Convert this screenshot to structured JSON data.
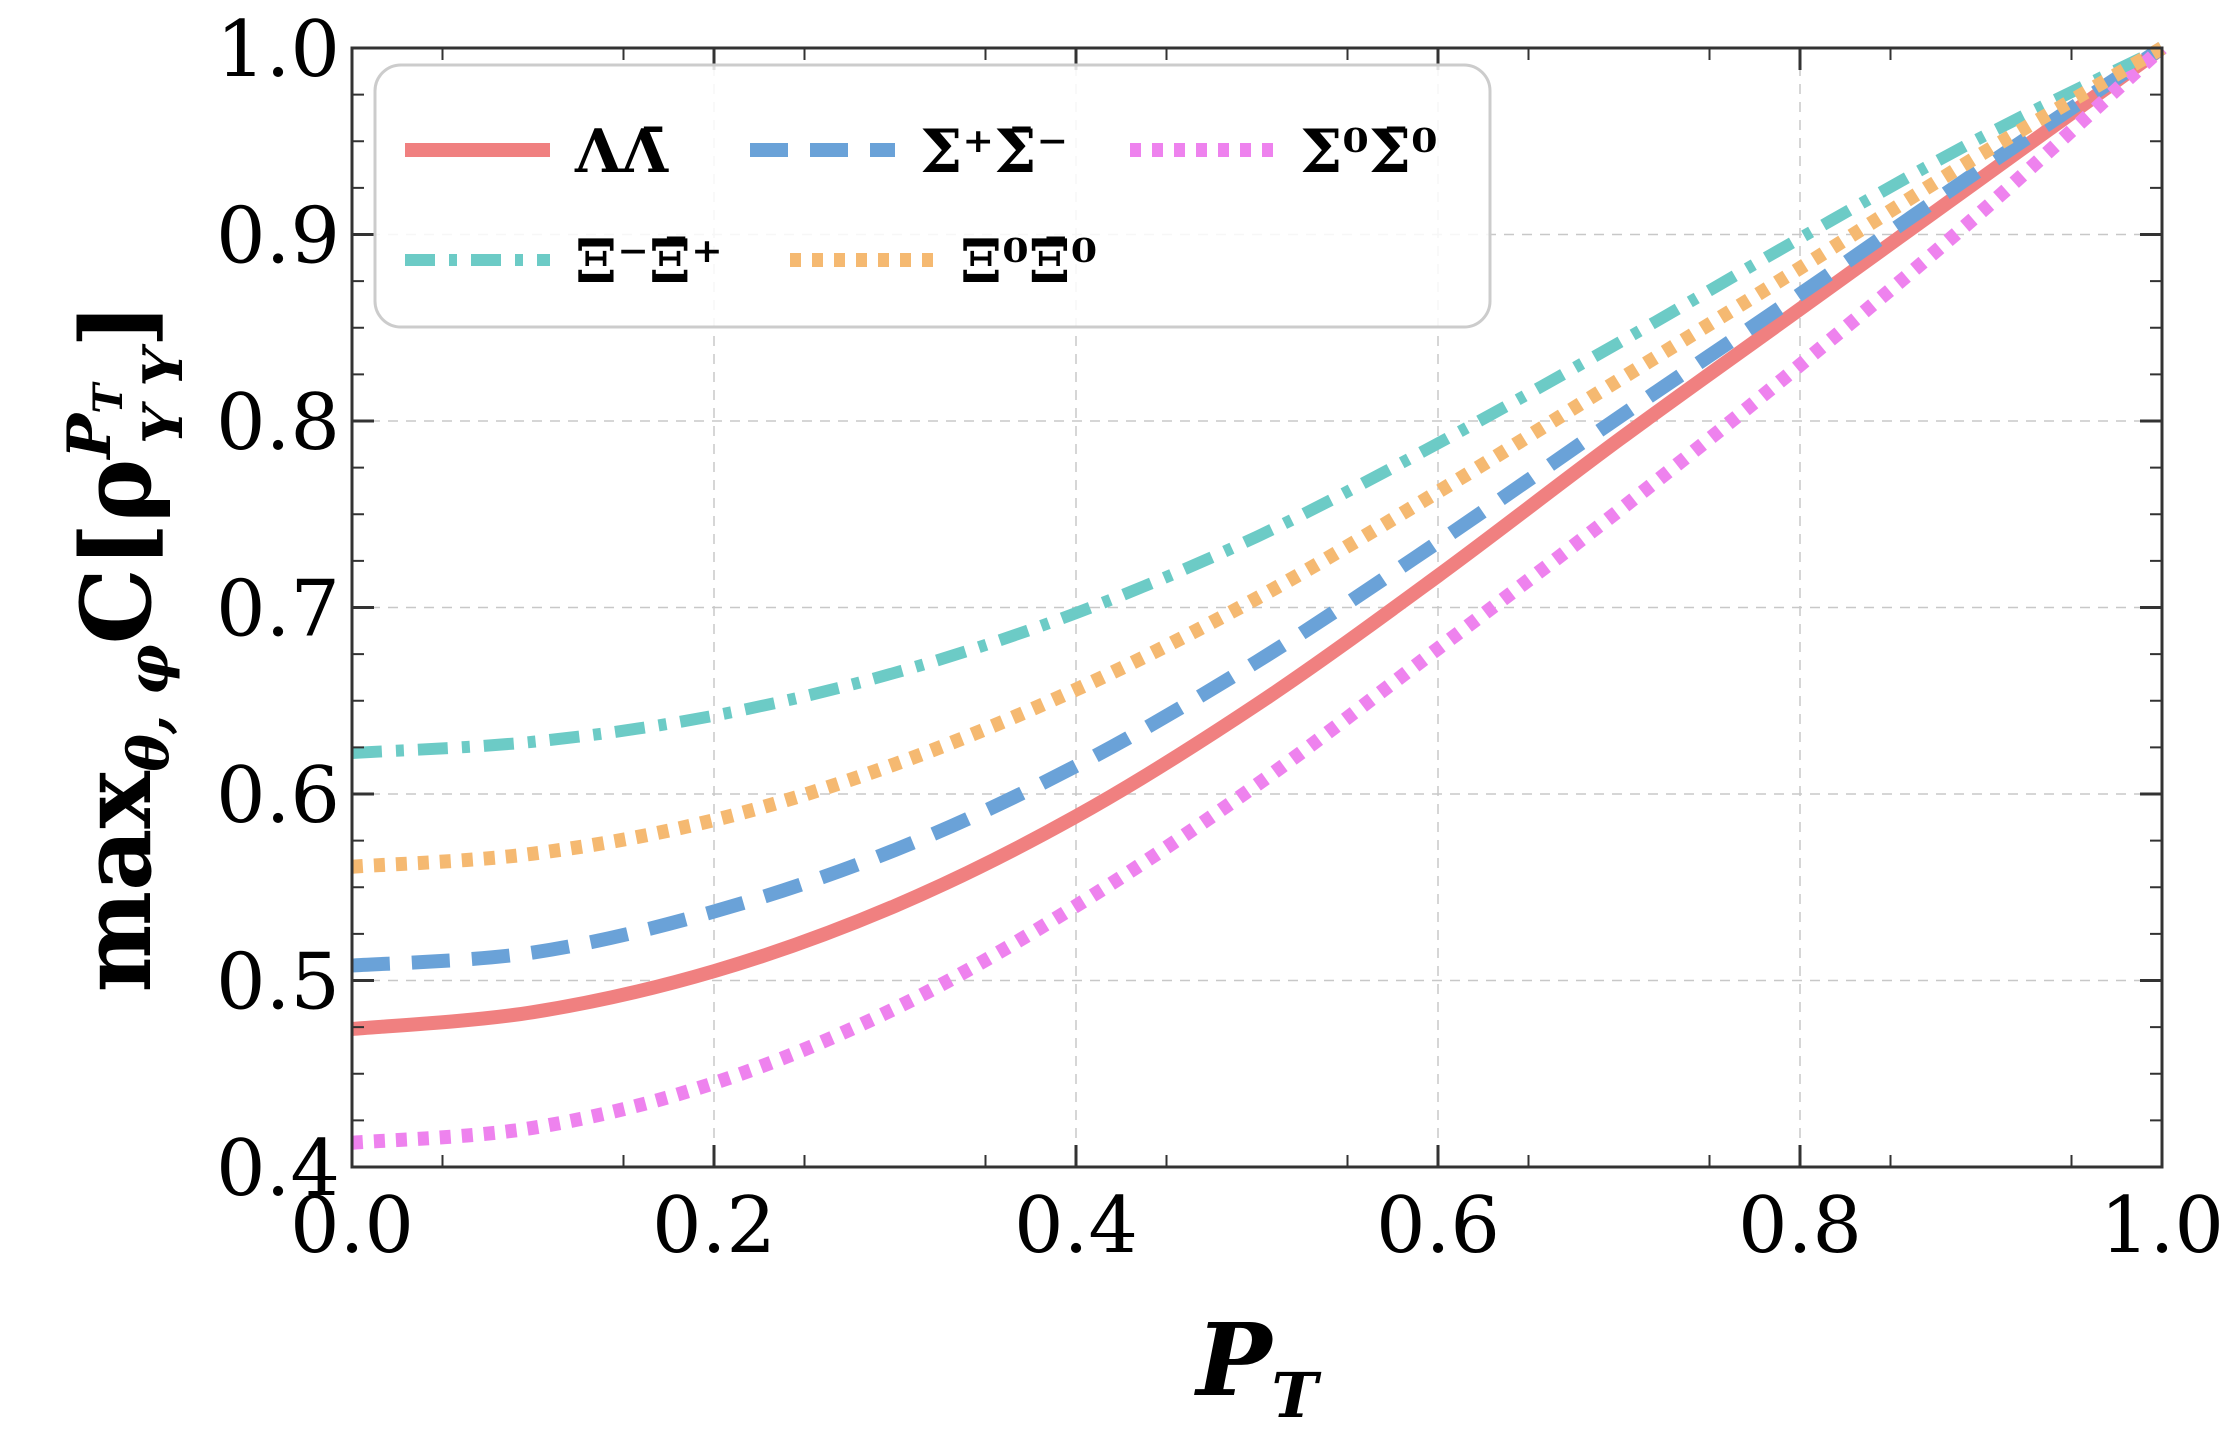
{
  "chart_data": {
    "type": "line",
    "xlabel": "P",
    "xlabel_sub": "T",
    "ylabel": {
      "prefix": "max",
      "prefix_sub": "θ, φ",
      "func": "C[ρ",
      "sup": "P",
      "sup_sub": "T",
      "sub": "Y Y",
      "suffix": "]"
    },
    "xlim": [
      0.0,
      1.0
    ],
    "ylim": [
      0.4,
      1.0
    ],
    "xticks": [
      "0.0",
      "0.2",
      "0.4",
      "0.6",
      "0.8",
      "1.0"
    ],
    "yticks": [
      "0.4",
      "0.5",
      "0.6",
      "0.7",
      "0.8",
      "0.9",
      "1.0"
    ],
    "grid": true,
    "legend_position": "top-left",
    "x": [
      0.0,
      0.1,
      0.2,
      0.3,
      0.4,
      0.5,
      0.6,
      0.7,
      0.8,
      0.9,
      1.0
    ],
    "series": [
      {
        "name": "ΛΛ̄",
        "color": "#f08080",
        "style": "solid",
        "values": [
          0.474,
          0.483,
          0.505,
          0.54,
          0.588,
          0.648,
          0.717,
          0.79,
          0.86,
          0.93,
          1.0
        ]
      },
      {
        "name": "Σ⁺Σ̄⁻",
        "color": "#6aa2d8",
        "style": "dashed",
        "values": [
          0.508,
          0.515,
          0.537,
          0.57,
          0.615,
          0.671,
          0.735,
          0.802,
          0.868,
          0.935,
          1.0
        ]
      },
      {
        "name": "Σ⁰Σ̄⁰",
        "color": "#ee82ee",
        "style": "dotted",
        "values": [
          0.413,
          0.421,
          0.445,
          0.485,
          0.54,
          0.605,
          0.678,
          0.752,
          0.83,
          0.912,
          1.0
        ]
      },
      {
        "name": "Ξ⁻Ξ̄⁺",
        "color": "#6ccbc6",
        "style": "dashdot",
        "values": [
          0.622,
          0.628,
          0.642,
          0.665,
          0.697,
          0.738,
          0.788,
          0.842,
          0.898,
          0.952,
          1.0
        ]
      },
      {
        "name": "Ξ⁰Ξ̄⁰",
        "color": "#f5b971",
        "style": "dotted",
        "values": [
          0.561,
          0.568,
          0.586,
          0.616,
          0.656,
          0.705,
          0.762,
          0.822,
          0.882,
          0.943,
          1.0
        ]
      }
    ]
  }
}
